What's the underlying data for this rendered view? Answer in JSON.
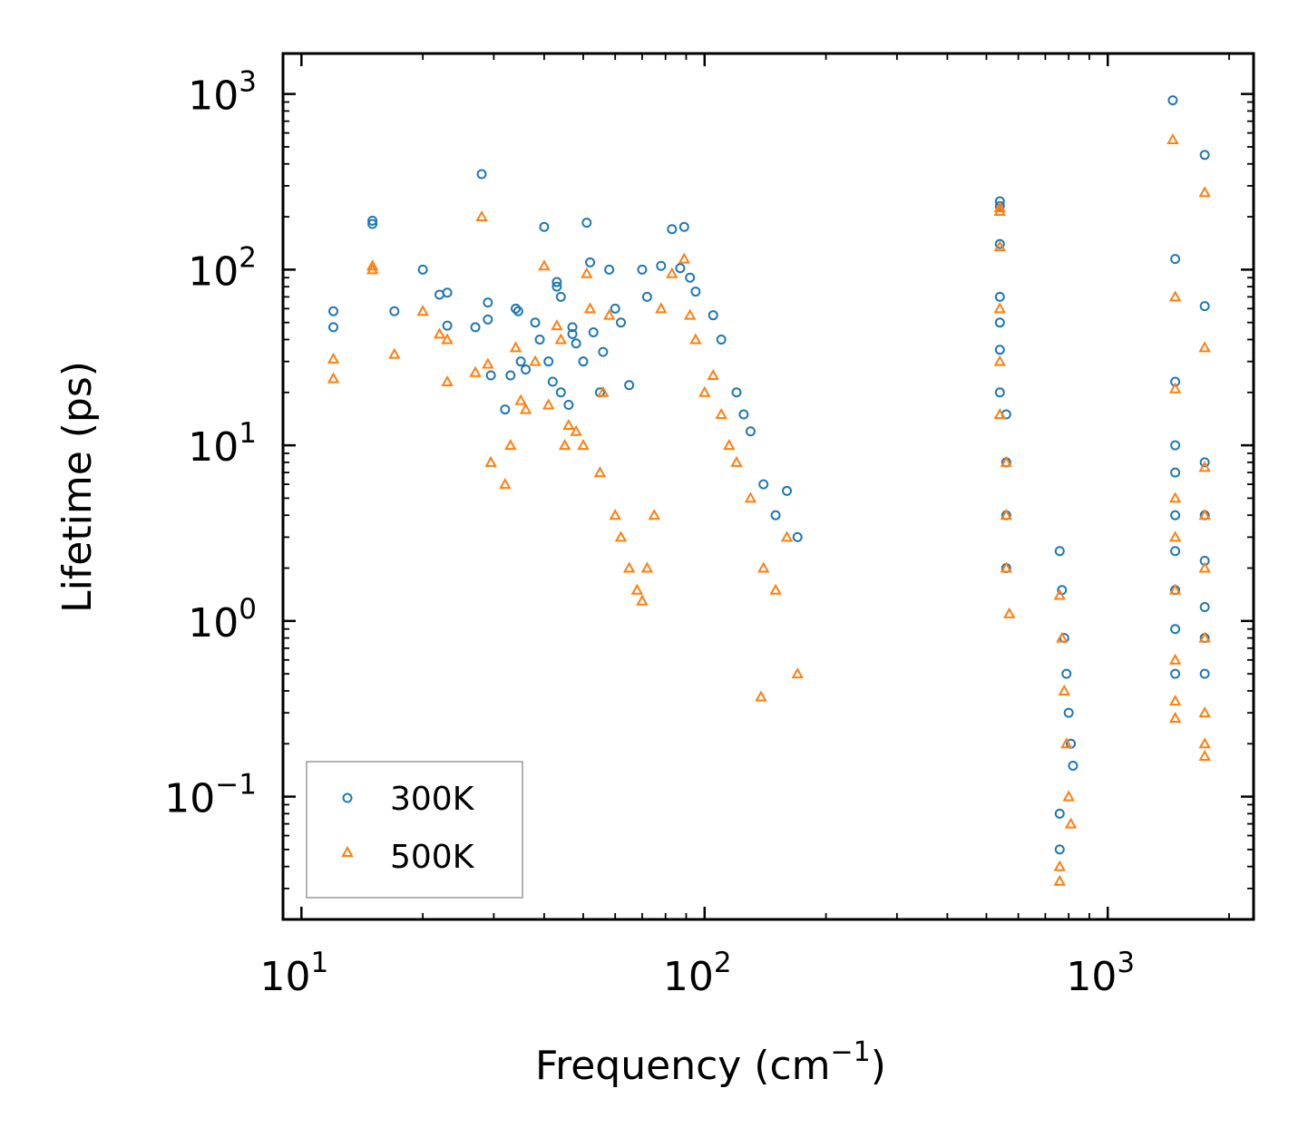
{
  "chart_data": {
    "type": "scatter",
    "xscale": "log",
    "yscale": "log",
    "xlabel": "Frequency (cm",
    "xlabel_exp": "−1",
    "xlabel_close": ")",
    "ylabel": "Lifetime (ps)",
    "xlim": [
      9,
      2300
    ],
    "ylim": [
      0.02,
      1700
    ],
    "x_ticks": [
      {
        "value": 10,
        "base": "10",
        "exp": "1"
      },
      {
        "value": 100,
        "base": "10",
        "exp": "2"
      },
      {
        "value": 1000,
        "base": "10",
        "exp": "3"
      }
    ],
    "y_ticks": [
      {
        "value": 0.1,
        "base": "10",
        "exp": "−1"
      },
      {
        "value": 1,
        "base": "10",
        "exp": "0"
      },
      {
        "value": 10,
        "base": "10",
        "exp": "1"
      },
      {
        "value": 100,
        "base": "10",
        "exp": "2"
      },
      {
        "value": 1000,
        "base": "10",
        "exp": "3"
      }
    ],
    "legend": {
      "position": "lower-left"
    },
    "series": [
      {
        "name": "300K",
        "marker": "circle",
        "color": "#1f77b4",
        "points": [
          [
            12,
            58
          ],
          [
            12,
            47
          ],
          [
            15,
            190
          ],
          [
            15,
            182
          ],
          [
            17,
            58
          ],
          [
            20,
            100
          ],
          [
            22,
            72
          ],
          [
            23,
            74
          ],
          [
            23,
            48
          ],
          [
            27,
            47
          ],
          [
            28,
            350
          ],
          [
            29,
            52
          ],
          [
            29,
            65
          ],
          [
            29.5,
            25
          ],
          [
            32,
            16
          ],
          [
            33,
            25
          ],
          [
            34,
            60
          ],
          [
            34.5,
            58
          ],
          [
            35,
            30
          ],
          [
            36,
            27
          ],
          [
            38,
            50
          ],
          [
            39,
            40
          ],
          [
            40,
            175
          ],
          [
            41,
            30
          ],
          [
            42,
            23
          ],
          [
            43,
            85
          ],
          [
            43,
            80
          ],
          [
            44,
            70
          ],
          [
            44,
            20
          ],
          [
            46,
            17
          ],
          [
            47,
            47
          ],
          [
            47,
            43
          ],
          [
            48,
            38
          ],
          [
            50,
            30
          ],
          [
            51,
            185
          ],
          [
            52,
            110
          ],
          [
            53,
            44
          ],
          [
            55,
            20
          ],
          [
            56,
            34
          ],
          [
            58,
            100
          ],
          [
            60,
            60
          ],
          [
            62,
            50
          ],
          [
            65,
            22
          ],
          [
            70,
            100
          ],
          [
            72,
            70
          ],
          [
            78,
            105
          ],
          [
            83,
            170
          ],
          [
            87,
            102
          ],
          [
            89,
            175
          ],
          [
            92,
            90
          ],
          [
            95,
            75
          ],
          [
            105,
            55
          ],
          [
            110,
            40
          ],
          [
            120,
            20
          ],
          [
            125,
            15
          ],
          [
            130,
            12
          ],
          [
            140,
            6
          ],
          [
            150,
            4
          ],
          [
            160,
            5.5
          ],
          [
            170,
            3
          ],
          [
            540,
            245
          ],
          [
            540,
            230
          ],
          [
            540,
            140
          ],
          [
            540,
            70
          ],
          [
            540,
            50
          ],
          [
            540,
            35
          ],
          [
            540,
            20
          ],
          [
            560,
            15
          ],
          [
            560,
            8
          ],
          [
            560,
            4
          ],
          [
            560,
            2
          ],
          [
            760,
            2.5
          ],
          [
            770,
            1.5
          ],
          [
            780,
            0.8
          ],
          [
            790,
            0.5
          ],
          [
            800,
            0.3
          ],
          [
            810,
            0.2
          ],
          [
            820,
            0.15
          ],
          [
            760,
            0.08
          ],
          [
            760,
            0.05
          ],
          [
            1450,
            920
          ],
          [
            1470,
            115
          ],
          [
            1470,
            23
          ],
          [
            1470,
            10
          ],
          [
            1470,
            7
          ],
          [
            1470,
            4
          ],
          [
            1470,
            2.5
          ],
          [
            1470,
            1.5
          ],
          [
            1470,
            0.9
          ],
          [
            1470,
            0.5
          ],
          [
            1740,
            450
          ],
          [
            1740,
            62
          ],
          [
            1740,
            8
          ],
          [
            1740,
            4
          ],
          [
            1740,
            2.2
          ],
          [
            1740,
            1.2
          ],
          [
            1740,
            0.8
          ],
          [
            1740,
            0.5
          ]
        ]
      },
      {
        "name": "500K",
        "marker": "triangle",
        "color": "#ff7f0e",
        "points": [
          [
            12,
            31
          ],
          [
            12,
            24
          ],
          [
            15,
            105
          ],
          [
            15,
            100
          ],
          [
            17,
            33
          ],
          [
            20,
            58
          ],
          [
            22,
            43
          ],
          [
            23,
            40
          ],
          [
            23,
            23
          ],
          [
            27,
            26
          ],
          [
            28,
            200
          ],
          [
            29,
            29
          ],
          [
            29.5,
            8
          ],
          [
            32,
            6
          ],
          [
            33,
            10
          ],
          [
            34,
            36
          ],
          [
            35,
            18
          ],
          [
            36,
            16
          ],
          [
            38,
            30
          ],
          [
            40,
            105
          ],
          [
            41,
            17
          ],
          [
            43,
            48
          ],
          [
            44,
            40
          ],
          [
            45,
            10
          ],
          [
            46,
            13
          ],
          [
            48,
            12
          ],
          [
            50,
            10
          ],
          [
            51,
            95
          ],
          [
            52,
            60
          ],
          [
            55,
            7
          ],
          [
            56,
            20
          ],
          [
            58,
            55
          ],
          [
            60,
            4
          ],
          [
            62,
            3
          ],
          [
            65,
            2
          ],
          [
            68,
            1.5
          ],
          [
            70,
            1.3
          ],
          [
            72,
            2
          ],
          [
            75,
            4
          ],
          [
            78,
            60
          ],
          [
            83,
            95
          ],
          [
            89,
            115
          ],
          [
            92,
            55
          ],
          [
            95,
            40
          ],
          [
            100,
            20
          ],
          [
            105,
            25
          ],
          [
            110,
            15
          ],
          [
            115,
            10
          ],
          [
            120,
            8
          ],
          [
            130,
            5
          ],
          [
            138,
            0.37
          ],
          [
            140,
            2
          ],
          [
            150,
            1.5
          ],
          [
            160,
            3
          ],
          [
            170,
            0.5
          ],
          [
            540,
            225
          ],
          [
            540,
            215
          ],
          [
            540,
            135
          ],
          [
            540,
            60
          ],
          [
            540,
            30
          ],
          [
            540,
            15
          ],
          [
            560,
            8
          ],
          [
            560,
            4
          ],
          [
            560,
            2
          ],
          [
            570,
            1.1
          ],
          [
            760,
            1.4
          ],
          [
            770,
            0.8
          ],
          [
            780,
            0.4
          ],
          [
            790,
            0.2
          ],
          [
            800,
            0.1
          ],
          [
            810,
            0.07
          ],
          [
            760,
            0.04
          ],
          [
            760,
            0.033
          ],
          [
            1450,
            550
          ],
          [
            1470,
            70
          ],
          [
            1470,
            21
          ],
          [
            1470,
            5
          ],
          [
            1470,
            3
          ],
          [
            1470,
            1.5
          ],
          [
            1470,
            0.6
          ],
          [
            1470,
            0.35
          ],
          [
            1470,
            0.28
          ],
          [
            1740,
            275
          ],
          [
            1740,
            36
          ],
          [
            1740,
            7.5
          ],
          [
            1740,
            4
          ],
          [
            1740,
            2
          ],
          [
            1740,
            0.8
          ],
          [
            1740,
            0.3
          ],
          [
            1740,
            0.2
          ],
          [
            1740,
            0.17
          ]
        ]
      }
    ]
  }
}
